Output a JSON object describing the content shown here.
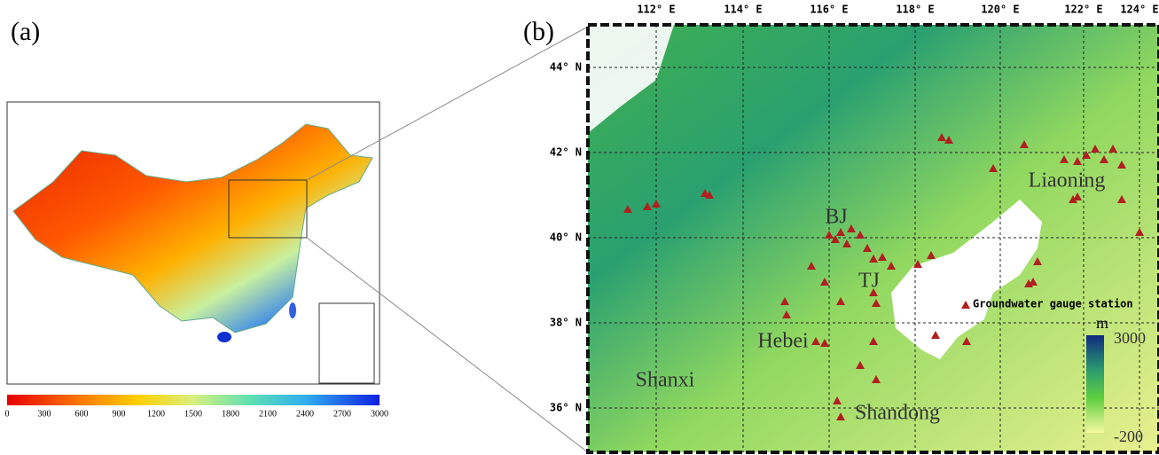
{
  "panel_a": {
    "label": "(a)",
    "colorbar_ticks": [
      0,
      300,
      600,
      900,
      1200,
      1500,
      1800,
      2100,
      2400,
      2700,
      3000
    ]
  },
  "panel_b": {
    "label": "(b)",
    "lon_labels": [
      "112° E",
      "114° E",
      "116° E",
      "118° E",
      "120° E",
      "122° E",
      "124° E"
    ],
    "lat_labels": [
      "44° N",
      "42° N",
      "40° N",
      "38° N",
      "36° N"
    ],
    "regions": [
      "Liaoning",
      "BJ",
      "TJ",
      "Hebei",
      "Shanxi",
      "Shandong"
    ],
    "legend": "Groundwater gauge station",
    "colorbar": {
      "unit": "m",
      "max_label": "3000",
      "min_label": "-200"
    }
  }
}
